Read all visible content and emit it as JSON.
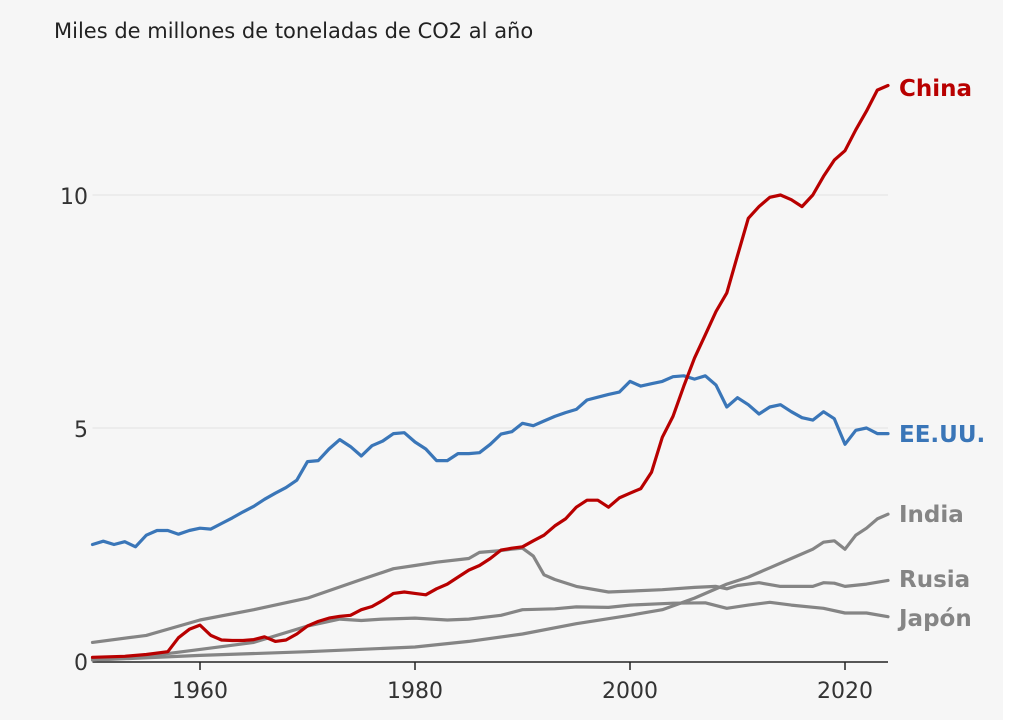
{
  "chart_data": {
    "type": "line",
    "title": "Miles de millones de toneladas de CO2 al año",
    "xlim": [
      1950,
      2024
    ],
    "ylim": [
      0,
      12.5
    ],
    "xticks": [
      1960,
      1980,
      2000,
      2020
    ],
    "yticks": [
      0,
      5,
      10
    ],
    "grid": "horizontal",
    "series": [
      {
        "name": "China",
        "color": "#b80000",
        "points": [
          [
            1950,
            0.08
          ],
          [
            1953,
            0.1
          ],
          [
            1955,
            0.14
          ],
          [
            1957,
            0.2
          ],
          [
            1958,
            0.5
          ],
          [
            1959,
            0.68
          ],
          [
            1960,
            0.77
          ],
          [
            1961,
            0.55
          ],
          [
            1962,
            0.45
          ],
          [
            1963,
            0.44
          ],
          [
            1964,
            0.44
          ],
          [
            1965,
            0.46
          ],
          [
            1966,
            0.52
          ],
          [
            1967,
            0.42
          ],
          [
            1968,
            0.45
          ],
          [
            1969,
            0.58
          ],
          [
            1970,
            0.75
          ],
          [
            1971,
            0.85
          ],
          [
            1972,
            0.92
          ],
          [
            1973,
            0.96
          ],
          [
            1974,
            0.98
          ],
          [
            1975,
            1.1
          ],
          [
            1976,
            1.17
          ],
          [
            1977,
            1.3
          ],
          [
            1978,
            1.45
          ],
          [
            1979,
            1.48
          ],
          [
            1980,
            1.45
          ],
          [
            1981,
            1.42
          ],
          [
            1982,
            1.55
          ],
          [
            1983,
            1.65
          ],
          [
            1984,
            1.8
          ],
          [
            1985,
            1.95
          ],
          [
            1986,
            2.05
          ],
          [
            1987,
            2.2
          ],
          [
            1988,
            2.38
          ],
          [
            1989,
            2.42
          ],
          [
            1990,
            2.45
          ],
          [
            1991,
            2.58
          ],
          [
            1992,
            2.7
          ],
          [
            1993,
            2.9
          ],
          [
            1994,
            3.05
          ],
          [
            1995,
            3.3
          ],
          [
            1996,
            3.45
          ],
          [
            1997,
            3.45
          ],
          [
            1998,
            3.3
          ],
          [
            1999,
            3.5
          ],
          [
            2000,
            3.6
          ],
          [
            2001,
            3.7
          ],
          [
            2002,
            4.05
          ],
          [
            2003,
            4.8
          ],
          [
            2004,
            5.25
          ],
          [
            2005,
            5.9
          ],
          [
            2006,
            6.5
          ],
          [
            2007,
            7.0
          ],
          [
            2008,
            7.5
          ],
          [
            2009,
            7.9
          ],
          [
            2010,
            8.7
          ],
          [
            2011,
            9.5
          ],
          [
            2012,
            9.75
          ],
          [
            2013,
            9.95
          ],
          [
            2014,
            10.0
          ],
          [
            2015,
            9.9
          ],
          [
            2016,
            9.75
          ],
          [
            2017,
            10.0
          ],
          [
            2018,
            10.4
          ],
          [
            2019,
            10.75
          ],
          [
            2020,
            10.95
          ],
          [
            2021,
            11.4
          ],
          [
            2022,
            11.8
          ],
          [
            2023,
            12.25
          ],
          [
            2024,
            12.35
          ]
        ]
      },
      {
        "name": "EE.UU.",
        "color": "#3a76b8",
        "points": [
          [
            1950,
            2.5
          ],
          [
            1951,
            2.57
          ],
          [
            1952,
            2.5
          ],
          [
            1953,
            2.56
          ],
          [
            1954,
            2.45
          ],
          [
            1955,
            2.7
          ],
          [
            1956,
            2.8
          ],
          [
            1957,
            2.8
          ],
          [
            1958,
            2.72
          ],
          [
            1959,
            2.8
          ],
          [
            1960,
            2.85
          ],
          [
            1961,
            2.83
          ],
          [
            1962,
            2.95
          ],
          [
            1963,
            3.07
          ],
          [
            1964,
            3.2
          ],
          [
            1965,
            3.32
          ],
          [
            1966,
            3.47
          ],
          [
            1967,
            3.6
          ],
          [
            1968,
            3.72
          ],
          [
            1969,
            3.88
          ],
          [
            1970,
            4.28
          ],
          [
            1971,
            4.3
          ],
          [
            1972,
            4.55
          ],
          [
            1973,
            4.75
          ],
          [
            1974,
            4.6
          ],
          [
            1975,
            4.4
          ],
          [
            1976,
            4.62
          ],
          [
            1977,
            4.72
          ],
          [
            1978,
            4.88
          ],
          [
            1979,
            4.9
          ],
          [
            1980,
            4.7
          ],
          [
            1981,
            4.55
          ],
          [
            1982,
            4.3
          ],
          [
            1983,
            4.3
          ],
          [
            1984,
            4.45
          ],
          [
            1985,
            4.45
          ],
          [
            1986,
            4.47
          ],
          [
            1987,
            4.65
          ],
          [
            1988,
            4.87
          ],
          [
            1989,
            4.92
          ],
          [
            1990,
            5.1
          ],
          [
            1991,
            5.05
          ],
          [
            1992,
            5.15
          ],
          [
            1993,
            5.25
          ],
          [
            1994,
            5.33
          ],
          [
            1995,
            5.4
          ],
          [
            1996,
            5.6
          ],
          [
            1997,
            5.66
          ],
          [
            1998,
            5.72
          ],
          [
            1999,
            5.77
          ],
          [
            2000,
            6.0
          ],
          [
            2001,
            5.9
          ],
          [
            2002,
            5.95
          ],
          [
            2003,
            6.0
          ],
          [
            2004,
            6.1
          ],
          [
            2005,
            6.12
          ],
          [
            2006,
            6.05
          ],
          [
            2007,
            6.12
          ],
          [
            2008,
            5.92
          ],
          [
            2009,
            5.45
          ],
          [
            2010,
            5.65
          ],
          [
            2011,
            5.5
          ],
          [
            2012,
            5.3
          ],
          [
            2013,
            5.45
          ],
          [
            2014,
            5.5
          ],
          [
            2015,
            5.35
          ],
          [
            2016,
            5.22
          ],
          [
            2017,
            5.17
          ],
          [
            2018,
            5.35
          ],
          [
            2019,
            5.2
          ],
          [
            2020,
            4.65
          ],
          [
            2021,
            4.95
          ],
          [
            2022,
            5.0
          ],
          [
            2023,
            4.88
          ],
          [
            2024,
            4.88
          ]
        ]
      },
      {
        "name": "India",
        "color": "#858585",
        "points": [
          [
            1950,
            0.02
          ],
          [
            1960,
            0.12
          ],
          [
            1970,
            0.2
          ],
          [
            1980,
            0.3
          ],
          [
            1985,
            0.42
          ],
          [
            1990,
            0.58
          ],
          [
            1995,
            0.8
          ],
          [
            2000,
            0.98
          ],
          [
            2003,
            1.1
          ],
          [
            2006,
            1.35
          ],
          [
            2009,
            1.65
          ],
          [
            2011,
            1.8
          ],
          [
            2013,
            2.0
          ],
          [
            2015,
            2.2
          ],
          [
            2017,
            2.4
          ],
          [
            2018,
            2.55
          ],
          [
            2019,
            2.58
          ],
          [
            2020,
            2.4
          ],
          [
            2021,
            2.7
          ],
          [
            2022,
            2.85
          ],
          [
            2023,
            3.05
          ],
          [
            2024,
            3.15
          ]
        ]
      },
      {
        "name": "Rusia",
        "color": "#858585",
        "points": [
          [
            1950,
            0.4
          ],
          [
            1955,
            0.55
          ],
          [
            1960,
            0.88
          ],
          [
            1965,
            1.1
          ],
          [
            1970,
            1.35
          ],
          [
            1975,
            1.75
          ],
          [
            1978,
            1.98
          ],
          [
            1980,
            2.05
          ],
          [
            1982,
            2.12
          ],
          [
            1985,
            2.2
          ],
          [
            1986,
            2.33
          ],
          [
            1988,
            2.37
          ],
          [
            1989,
            2.4
          ],
          [
            1990,
            2.42
          ],
          [
            1991,
            2.25
          ],
          [
            1992,
            1.85
          ],
          [
            1993,
            1.75
          ],
          [
            1995,
            1.6
          ],
          [
            1998,
            1.48
          ],
          [
            2000,
            1.5
          ],
          [
            2003,
            1.53
          ],
          [
            2006,
            1.58
          ],
          [
            2008,
            1.6
          ],
          [
            2009,
            1.55
          ],
          [
            2010,
            1.62
          ],
          [
            2012,
            1.68
          ],
          [
            2014,
            1.6
          ],
          [
            2017,
            1.6
          ],
          [
            2018,
            1.68
          ],
          [
            2019,
            1.67
          ],
          [
            2020,
            1.6
          ],
          [
            2022,
            1.65
          ],
          [
            2024,
            1.73
          ]
        ]
      },
      {
        "name": "Japón",
        "color": "#858585",
        "points": [
          [
            1950,
            0.05
          ],
          [
            1955,
            0.1
          ],
          [
            1960,
            0.25
          ],
          [
            1965,
            0.4
          ],
          [
            1970,
            0.75
          ],
          [
            1973,
            0.9
          ],
          [
            1975,
            0.87
          ],
          [
            1977,
            0.9
          ],
          [
            1980,
            0.92
          ],
          [
            1983,
            0.88
          ],
          [
            1985,
            0.9
          ],
          [
            1988,
            0.98
          ],
          [
            1990,
            1.1
          ],
          [
            1993,
            1.12
          ],
          [
            1995,
            1.16
          ],
          [
            1998,
            1.15
          ],
          [
            2000,
            1.2
          ],
          [
            2004,
            1.24
          ],
          [
            2007,
            1.25
          ],
          [
            2009,
            1.13
          ],
          [
            2011,
            1.2
          ],
          [
            2013,
            1.26
          ],
          [
            2015,
            1.2
          ],
          [
            2018,
            1.13
          ],
          [
            2020,
            1.03
          ],
          [
            2022,
            1.03
          ],
          [
            2024,
            0.95
          ]
        ]
      }
    ]
  }
}
